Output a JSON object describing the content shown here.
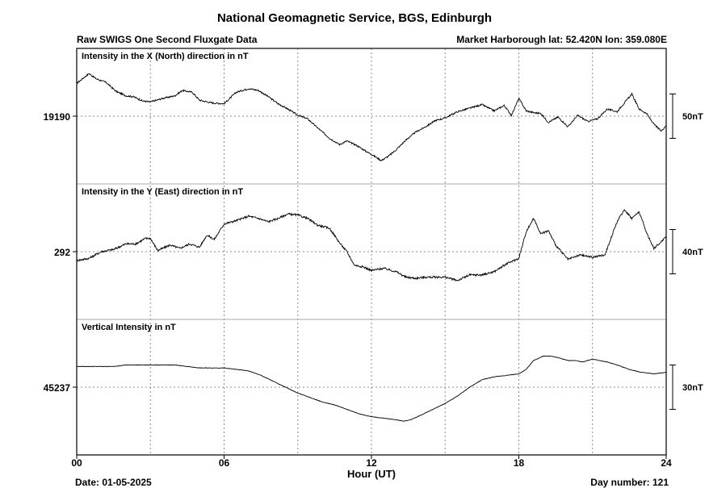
{
  "title": "National Geomagnetic Service, BGS, Edinburgh",
  "subtitle_left": "Raw SWIGS One Second Fluxgate Data",
  "subtitle_right": "Market Harborough  lat: 52.420N lon: 359.080E",
  "footer_left": "Date: 01-05-2025",
  "footer_right": "Day number:  121",
  "chart_data": {
    "type": "line",
    "xlabel": "Hour (UT)",
    "x_ticks": [
      "00",
      "06",
      "12",
      "18",
      "24"
    ],
    "xlim": [
      0,
      24
    ],
    "grid": true,
    "panels": [
      {
        "label": "Intensity in the X (North) direction in nT",
        "baseline": "19190",
        "scale_label": "50nT",
        "baseline_value": 19190,
        "scale_nT": 50,
        "x": [
          0,
          0.5,
          0.8,
          1.2,
          1.6,
          2.0,
          2.3,
          2.7,
          3.0,
          3.5,
          4.0,
          4.3,
          4.7,
          5.0,
          5.5,
          6.0,
          6.5,
          7.0,
          7.4,
          7.8,
          8.2,
          8.6,
          9.0,
          9.4,
          9.8,
          10.3,
          10.7,
          11.0,
          11.4,
          11.8,
          12.0,
          12.4,
          12.7,
          13.0,
          13.4,
          13.8,
          14.2,
          14.6,
          15.0,
          15.5,
          16.0,
          16.5,
          17.0,
          17.4,
          17.7,
          18.0,
          18.3,
          18.6,
          18.9,
          19.2,
          19.6,
          20.0,
          20.4,
          20.8,
          21.2,
          21.6,
          22.0,
          22.3,
          22.6,
          22.9,
          23.2,
          23.5,
          23.8,
          24.0
        ],
        "y": [
          37,
          48,
          42,
          38,
          28,
          23,
          22,
          17,
          16,
          20,
          23,
          29,
          27,
          18,
          15,
          14,
          27,
          31,
          29,
          22,
          14,
          8,
          1,
          -3,
          -13,
          -25,
          -32,
          -28,
          -33,
          -40,
          -43,
          -50,
          -45,
          -38,
          -27,
          -18,
          -12,
          -5,
          -2,
          5,
          9,
          13,
          6,
          12,
          1,
          20,
          6,
          4,
          3,
          -7,
          -1,
          -12,
          1,
          -6,
          -3,
          8,
          5,
          15,
          25,
          8,
          3,
          -9,
          -17,
          -10
        ]
      },
      {
        "label": "Intensity in the Y (East) direction in nT",
        "baseline": "292",
        "scale_label": "40nT",
        "baseline_value": 292,
        "scale_nT": 40,
        "x": [
          0,
          0.5,
          1.0,
          1.5,
          2.0,
          2.4,
          2.8,
          3.0,
          3.3,
          3.8,
          4.2,
          4.6,
          5.0,
          5.3,
          5.6,
          6.0,
          6.5,
          7.0,
          7.4,
          7.8,
          8.2,
          8.6,
          9.0,
          9.4,
          9.8,
          10.3,
          10.7,
          11.0,
          11.3,
          11.7,
          12.0,
          12.5,
          13.0,
          13.4,
          13.8,
          14.2,
          14.6,
          15.0,
          15.5,
          16.0,
          16.5,
          17.0,
          17.5,
          18.0,
          18.3,
          18.6,
          18.9,
          19.2,
          19.5,
          19.8,
          20.0,
          20.5,
          21.0,
          21.5,
          22.0,
          22.3,
          22.6,
          22.9,
          23.2,
          23.5,
          23.8,
          24.0
        ],
        "y": [
          -8,
          -6,
          0,
          2,
          7,
          7,
          12,
          12,
          1,
          6,
          3,
          7,
          4,
          15,
          11,
          25,
          28,
          32,
          30,
          27,
          30,
          34,
          33,
          30,
          24,
          21,
          8,
          0,
          -12,
          -14,
          -17,
          -15,
          -18,
          -23,
          -24,
          -23,
          -23,
          -23,
          -26,
          -21,
          -21,
          -18,
          -11,
          -6,
          18,
          30,
          16,
          19,
          6,
          -2,
          -7,
          -3,
          -5,
          -3,
          27,
          38,
          30,
          36,
          17,
          3,
          9,
          14
        ]
      },
      {
        "label": "Vertical Intensity in nT",
        "baseline": "45237",
        "scale_label": "30nT",
        "baseline_value": 45237,
        "scale_nT": 30,
        "x": [
          0,
          0.5,
          1.0,
          1.5,
          2.0,
          2.5,
          3.0,
          3.5,
          4.0,
          4.5,
          5.0,
          5.5,
          6.0,
          6.5,
          7.0,
          7.5,
          8.0,
          8.5,
          9.0,
          9.5,
          10.0,
          10.5,
          11.0,
          11.5,
          12.0,
          12.5,
          13.0,
          13.3,
          13.6,
          14.0,
          14.5,
          15.0,
          15.5,
          16.0,
          16.5,
          17.0,
          17.5,
          18.0,
          18.3,
          18.6,
          19.0,
          19.3,
          19.6,
          20.0,
          20.3,
          20.6,
          21.0,
          21.3,
          21.6,
          22.0,
          22.5,
          23.0,
          23.5,
          24.0
        ],
        "y": [
          14,
          14,
          14,
          14,
          15,
          15,
          15,
          15,
          15,
          14,
          13,
          13,
          13,
          12,
          11,
          8,
          4,
          0,
          -4,
          -7,
          -10,
          -12,
          -15,
          -18,
          -20,
          -21,
          -22,
          -23,
          -22,
          -19,
          -15,
          -11,
          -6,
          0,
          5,
          7,
          8,
          9,
          12,
          18,
          21,
          21,
          20,
          18,
          18,
          17,
          19,
          18,
          17,
          15,
          12,
          10,
          9,
          10
        ]
      }
    ]
  }
}
